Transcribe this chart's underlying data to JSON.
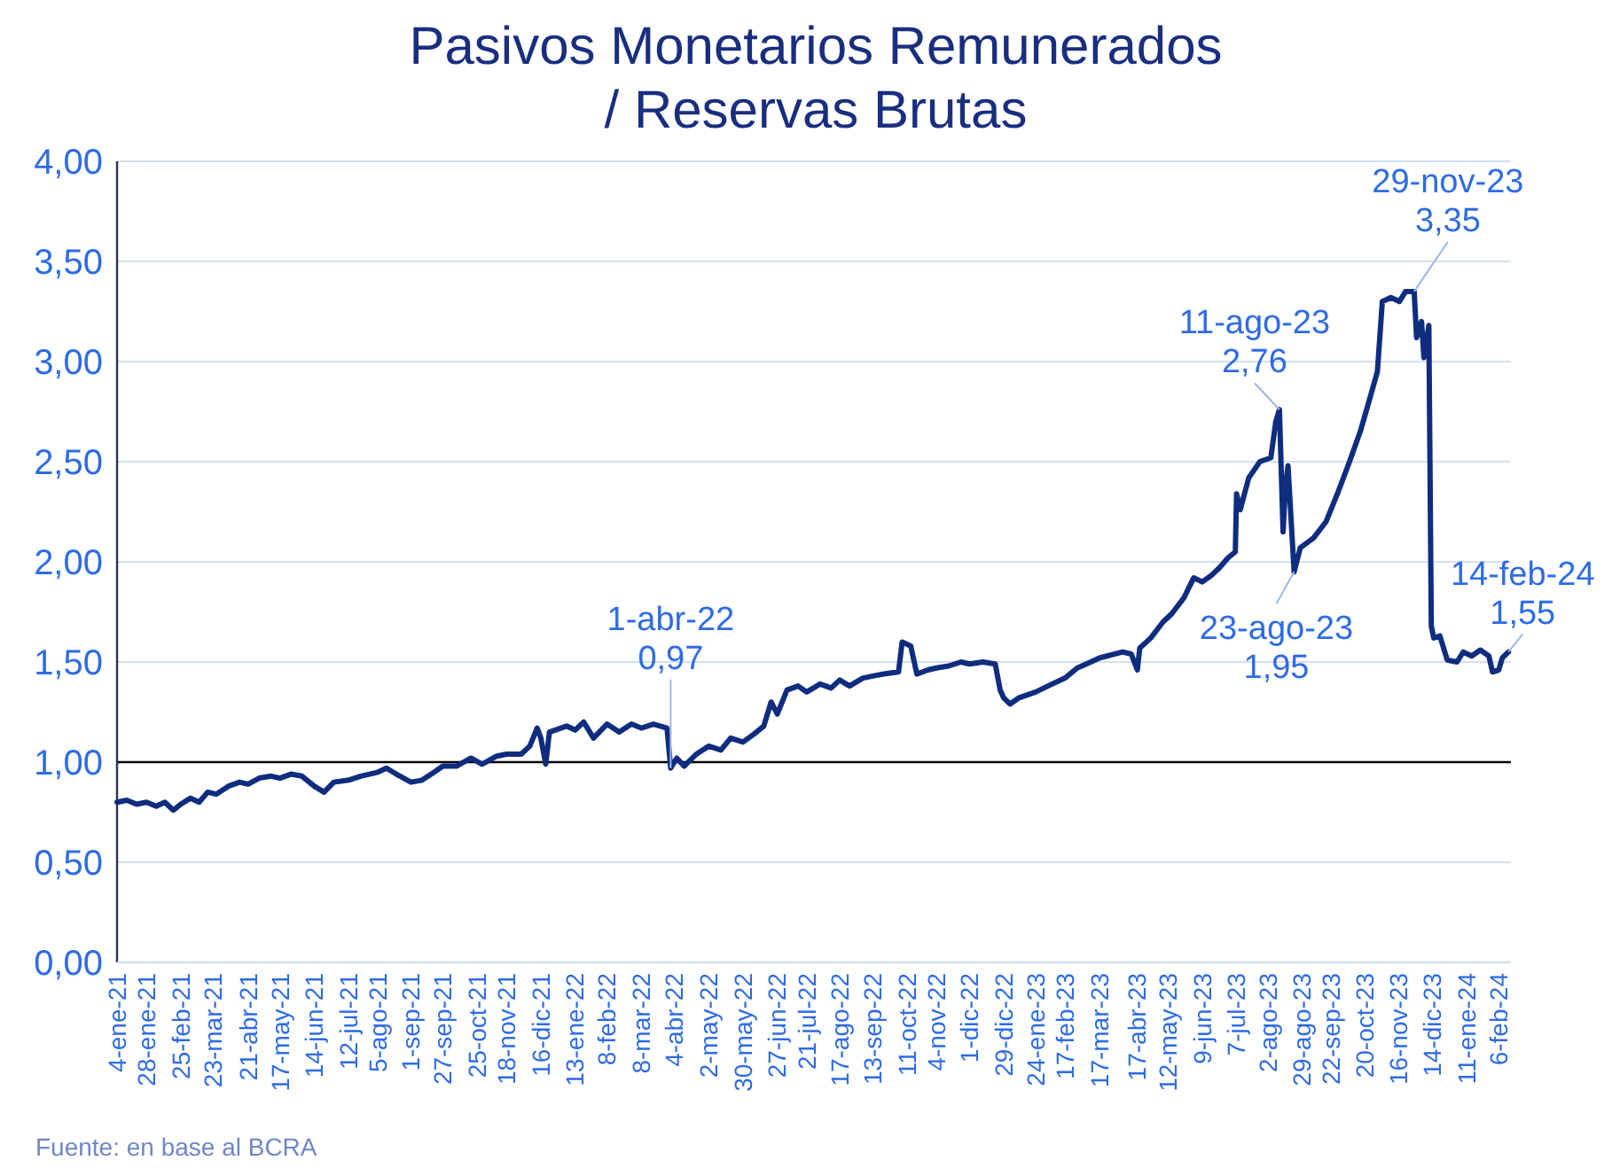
{
  "chart_data": {
    "type": "line",
    "title": "Pasivos Monetarios Remunerados\n/ Reservas Brutas",
    "color": "#0f2d7f",
    "line_style": "solid",
    "marker": "none",
    "grid": "y",
    "x": [
      "2021-01-04",
      "2021-01-12",
      "2021-01-20",
      "2021-01-28",
      "2021-02-05",
      "2021-02-12",
      "2021-02-19",
      "2021-02-25",
      "2021-03-05",
      "2021-03-12",
      "2021-03-19",
      "2021-03-26",
      "2021-04-05",
      "2021-04-14",
      "2021-04-21",
      "2021-04-30",
      "2021-05-10",
      "2021-05-17",
      "2021-05-26",
      "2021-06-04",
      "2021-06-14",
      "2021-06-22",
      "2021-06-30",
      "2021-07-12",
      "2021-07-22",
      "2021-08-05",
      "2021-08-12",
      "2021-08-20",
      "2021-09-01",
      "2021-09-10",
      "2021-09-20",
      "2021-09-27",
      "2021-10-08",
      "2021-10-20",
      "2021-10-29",
      "2021-11-10",
      "2021-11-18",
      "2021-11-30",
      "2021-12-07",
      "2021-12-13",
      "2021-12-16",
      "2021-12-20",
      "2021-12-23",
      "2022-01-06",
      "2022-01-13",
      "2022-01-20",
      "2022-01-28",
      "2022-02-08",
      "2022-02-18",
      "2022-02-28",
      "2022-03-08",
      "2022-03-18",
      "2022-03-29",
      "2022-04-01",
      "2022-04-06",
      "2022-04-12",
      "2022-04-22",
      "2022-05-02",
      "2022-05-12",
      "2022-05-20",
      "2022-05-30",
      "2022-06-08",
      "2022-06-16",
      "2022-06-22",
      "2022-06-27",
      "2022-07-05",
      "2022-07-14",
      "2022-07-21",
      "2022-08-01",
      "2022-08-10",
      "2022-08-17",
      "2022-08-25",
      "2022-09-05",
      "2022-09-13",
      "2022-09-22",
      "2022-10-04",
      "2022-10-07",
      "2022-10-14",
      "2022-10-19",
      "2022-10-28",
      "2022-11-04",
      "2022-11-14",
      "2022-11-24",
      "2022-12-01",
      "2022-12-12",
      "2022-12-22",
      "2022-12-26",
      "2022-12-29",
      "2023-01-03",
      "2023-01-10",
      "2023-01-24",
      "2023-02-03",
      "2023-02-17",
      "2023-02-27",
      "2023-03-10",
      "2023-03-17",
      "2023-04-05",
      "2023-04-12",
      "2023-04-17",
      "2023-04-19",
      "2023-04-28",
      "2023-05-08",
      "2023-05-15",
      "2023-05-25",
      "2023-06-02",
      "2023-06-09",
      "2023-06-16",
      "2023-06-23",
      "2023-06-30",
      "2023-07-06",
      "2023-07-07",
      "2023-07-10",
      "2023-07-17",
      "2023-07-26",
      "2023-08-04",
      "2023-08-08",
      "2023-08-11",
      "2023-08-14",
      "2023-08-16",
      "2023-08-18",
      "2023-08-23",
      "2023-08-28",
      "2023-09-08",
      "2023-09-18",
      "2023-09-28",
      "2023-10-06",
      "2023-10-16",
      "2023-10-24",
      "2023-10-30",
      "2023-11-03",
      "2023-11-10",
      "2023-11-17",
      "2023-11-22",
      "2023-11-29",
      "2023-12-01",
      "2023-12-05",
      "2023-12-07",
      "2023-12-11",
      "2023-12-13",
      "2023-12-15",
      "2023-12-20",
      "2023-12-26",
      "2024-01-03",
      "2024-01-08",
      "2024-01-15",
      "2024-01-22",
      "2024-01-29",
      "2024-02-01",
      "2024-02-06",
      "2024-02-09",
      "2024-02-14"
    ],
    "values": [
      0.8,
      0.81,
      0.79,
      0.8,
      0.78,
      0.8,
      0.76,
      0.79,
      0.82,
      0.8,
      0.85,
      0.84,
      0.88,
      0.9,
      0.89,
      0.92,
      0.93,
      0.92,
      0.94,
      0.93,
      0.88,
      0.85,
      0.9,
      0.91,
      0.93,
      0.95,
      0.97,
      0.94,
      0.9,
      0.91,
      0.95,
      0.98,
      0.98,
      1.02,
      0.99,
      1.03,
      1.04,
      1.04,
      1.08,
      1.17,
      1.12,
      0.99,
      1.15,
      1.18,
      1.16,
      1.2,
      1.12,
      1.19,
      1.15,
      1.19,
      1.17,
      1.19,
      1.17,
      0.97,
      1.02,
      0.98,
      1.04,
      1.08,
      1.06,
      1.12,
      1.1,
      1.14,
      1.18,
      1.3,
      1.24,
      1.36,
      1.38,
      1.35,
      1.39,
      1.37,
      1.41,
      1.38,
      1.42,
      1.43,
      1.44,
      1.45,
      1.6,
      1.58,
      1.44,
      1.46,
      1.47,
      1.48,
      1.5,
      1.49,
      1.5,
      1.49,
      1.36,
      1.32,
      1.29,
      1.32,
      1.35,
      1.38,
      1.42,
      1.47,
      1.5,
      1.52,
      1.55,
      1.54,
      1.46,
      1.57,
      1.62,
      1.7,
      1.74,
      1.82,
      1.92,
      1.9,
      1.93,
      1.97,
      2.02,
      2.05,
      2.34,
      2.26,
      2.42,
      2.5,
      2.52,
      2.7,
      2.76,
      2.15,
      2.38,
      2.48,
      1.95,
      2.07,
      2.12,
      2.2,
      2.35,
      2.48,
      2.65,
      2.82,
      2.95,
      3.3,
      3.32,
      3.3,
      3.35,
      3.35,
      3.12,
      3.2,
      3.02,
      3.18,
      1.68,
      1.62,
      1.63,
      1.51,
      1.5,
      1.55,
      1.53,
      1.56,
      1.53,
      1.45,
      1.46,
      1.52,
      1.55
    ],
    "xlim": [
      "2021-01-04",
      "2024-02-16"
    ],
    "xticks": [
      {
        "value": "2021-01-04",
        "label": "4-ene-21"
      },
      {
        "value": "2021-01-28",
        "label": "28-ene-21"
      },
      {
        "value": "2021-02-25",
        "label": "25-feb-21"
      },
      {
        "value": "2021-03-23",
        "label": "23-mar-21"
      },
      {
        "value": "2021-04-21",
        "label": "21-abr-21"
      },
      {
        "value": "2021-05-17",
        "label": "17-may-21"
      },
      {
        "value": "2021-06-14",
        "label": "14-jun-21"
      },
      {
        "value": "2021-07-12",
        "label": "12-jul-21"
      },
      {
        "value": "2021-08-05",
        "label": "5-ago-21"
      },
      {
        "value": "2021-09-01",
        "label": "1-sep-21"
      },
      {
        "value": "2021-09-27",
        "label": "27-sep-21"
      },
      {
        "value": "2021-10-25",
        "label": "25-oct-21"
      },
      {
        "value": "2021-11-18",
        "label": "18-nov-21"
      },
      {
        "value": "2021-12-16",
        "label": "16-dic-21"
      },
      {
        "value": "2022-01-13",
        "label": "13-ene-22"
      },
      {
        "value": "2022-02-08",
        "label": "8-feb-22"
      },
      {
        "value": "2022-03-08",
        "label": "8-mar-22"
      },
      {
        "value": "2022-04-04",
        "label": "4-abr-22"
      },
      {
        "value": "2022-05-02",
        "label": "2-may-22"
      },
      {
        "value": "2022-05-30",
        "label": "30-may-22"
      },
      {
        "value": "2022-06-27",
        "label": "27-jun-22"
      },
      {
        "value": "2022-07-21",
        "label": "21-jul-22"
      },
      {
        "value": "2022-08-17",
        "label": "17-ago-22"
      },
      {
        "value": "2022-09-13",
        "label": "13-sep-22"
      },
      {
        "value": "2022-10-11",
        "label": "11-oct-22"
      },
      {
        "value": "2022-11-04",
        "label": "4-nov-22"
      },
      {
        "value": "2022-12-01",
        "label": "1-dic-22"
      },
      {
        "value": "2022-12-29",
        "label": "29-dic-22"
      },
      {
        "value": "2023-01-24",
        "label": "24-ene-23"
      },
      {
        "value": "2023-02-17",
        "label": "17-feb-23"
      },
      {
        "value": "2023-03-17",
        "label": "17-mar-23"
      },
      {
        "value": "2023-04-17",
        "label": "17-abr-23"
      },
      {
        "value": "2023-05-12",
        "label": "12-may-23"
      },
      {
        "value": "2023-06-09",
        "label": "9-jun-23"
      },
      {
        "value": "2023-07-07",
        "label": "7-jul-23"
      },
      {
        "value": "2023-08-02",
        "label": "2-ago-23"
      },
      {
        "value": "2023-08-29",
        "label": "29-ago-23"
      },
      {
        "value": "2023-09-22",
        "label": "22-sep-23"
      },
      {
        "value": "2023-10-20",
        "label": "20-oct-23"
      },
      {
        "value": "2023-11-16",
        "label": "16-nov-23"
      },
      {
        "value": "2023-12-14",
        "label": "14-dic-23"
      },
      {
        "value": "2024-01-11",
        "label": "11-ene-24"
      },
      {
        "value": "2024-02-06",
        "label": "6-feb-24"
      }
    ],
    "ylim": [
      0,
      4
    ],
    "yticks": [
      {
        "value": 0,
        "label": "0,00"
      },
      {
        "value": 0.5,
        "label": "0,50"
      },
      {
        "value": 1,
        "label": "1,00"
      },
      {
        "value": 1.5,
        "label": "1,50"
      },
      {
        "value": 2,
        "label": "2,00"
      },
      {
        "value": 2.5,
        "label": "2,50"
      },
      {
        "value": 3,
        "label": "3,00"
      },
      {
        "value": 3.5,
        "label": "3,50"
      },
      {
        "value": 4,
        "label": "4,00"
      }
    ],
    "ref_lines": [
      {
        "axis": "y",
        "value": 1,
        "color": "#000000"
      }
    ],
    "annotations": [
      {
        "text": "1-abr-22\n0,97",
        "x": "2022-04-01",
        "y": 0.97
      },
      {
        "text": "11-ago-23\n2,76",
        "x": "2023-08-11",
        "y": 2.76
      },
      {
        "text": "23-ago-23\n1,95",
        "x": "2023-08-23",
        "y": 1.95
      },
      {
        "text": "29-nov-23\n3,35",
        "x": "2023-11-29",
        "y": 3.35
      },
      {
        "text": "14-feb-24\n1,55",
        "x": "2024-02-14",
        "y": 1.55
      },
      "Fuente: en base al BCRA"
    ]
  }
}
